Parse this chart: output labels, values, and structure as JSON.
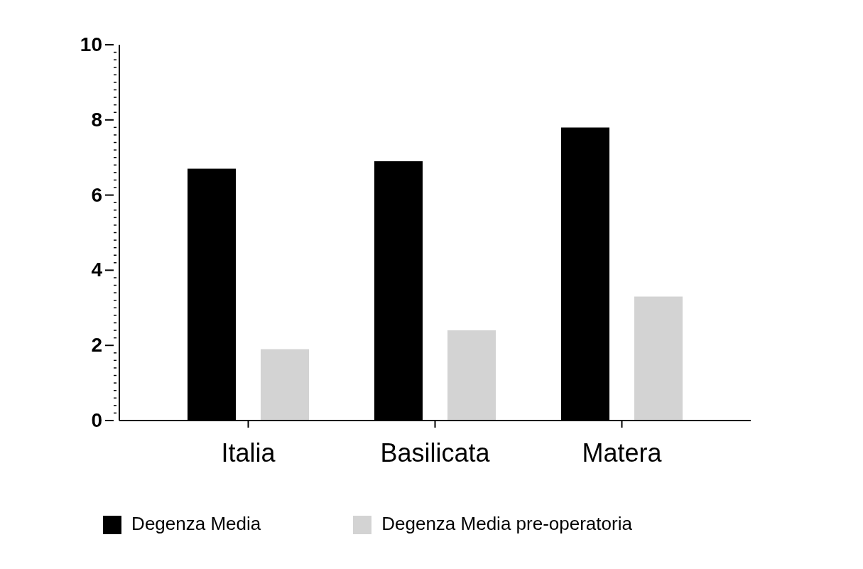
{
  "chart_data": {
    "type": "bar",
    "categories": [
      "Italia",
      "Basilicata",
      "Matera"
    ],
    "series": [
      {
        "name": "Degenza Media",
        "color": "#000000",
        "values": [
          6.7,
          6.9,
          7.8
        ]
      },
      {
        "name": "Degenza Media pre-operatoria",
        "color": "#d3d3d3",
        "values": [
          1.9,
          2.4,
          3.3
        ]
      }
    ],
    "ylim": [
      0,
      10
    ],
    "yticks": [
      0,
      {
        "value": 0.2,
        "label": null
      },
      {
        "value": 0.4,
        "label": null
      },
      {
        "value": 0.6,
        "label": null
      },
      {
        "value": 0.8,
        "label": null
      },
      {
        "value": 1,
        "label": null
      },
      {
        "value": 1.2,
        "label": null
      },
      {
        "value": 1.4,
        "label": null
      },
      {
        "value": 1.6,
        "label": null
      },
      {
        "value": 1.8,
        "label": null
      },
      2,
      {
        "value": 2.2,
        "label": null
      },
      {
        "value": 2.4,
        "label": null
      },
      {
        "value": 2.6,
        "label": null
      },
      {
        "value": 2.8,
        "label": null
      },
      {
        "value": 3,
        "label": null
      },
      {
        "value": 3.2,
        "label": null
      },
      {
        "value": 3.4,
        "label": null
      },
      {
        "value": 3.6,
        "label": null
      },
      {
        "value": 3.8,
        "label": null
      },
      4,
      {
        "value": 4.2,
        "label": null
      },
      {
        "value": 4.4,
        "label": null
      },
      {
        "value": 4.6,
        "label": null
      },
      {
        "value": 4.8,
        "label": null
      },
      {
        "value": 5,
        "label": null
      },
      {
        "value": 5.2,
        "label": null
      },
      {
        "value": 5.4,
        "label": null
      },
      {
        "value": 5.6,
        "label": null
      },
      {
        "value": 5.8,
        "label": null
      },
      6,
      {
        "value": 6.2,
        "label": null
      },
      {
        "value": 6.4,
        "label": null
      },
      {
        "value": 6.6,
        "label": null
      },
      {
        "value": 6.8,
        "label": null
      },
      {
        "value": 7,
        "label": null
      },
      {
        "value": 7.2,
        "label": null
      },
      {
        "value": 7.4,
        "label": null
      },
      {
        "value": 7.6,
        "label": null
      },
      {
        "value": 7.8,
        "label": null
      },
      8,
      {
        "value": 8.2,
        "label": null
      },
      {
        "value": 8.4,
        "label": null
      },
      {
        "value": 8.6,
        "label": null
      },
      {
        "value": 8.8,
        "label": null
      },
      {
        "value": 9,
        "label": null
      },
      {
        "value": 9.2,
        "label": null
      },
      {
        "value": 9.4,
        "label": null
      },
      {
        "value": 9.6,
        "label": null
      },
      {
        "value": 9.8,
        "label": null
      },
      10
    ],
    "grid": false,
    "legend": "bottom"
  }
}
